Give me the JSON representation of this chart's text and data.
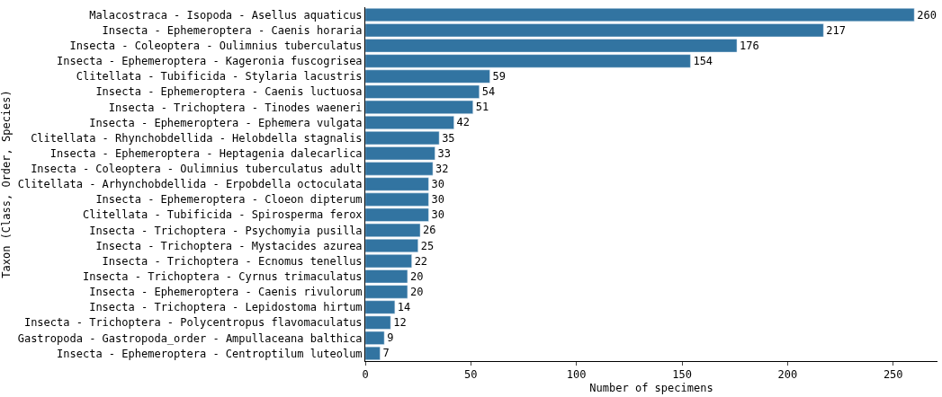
{
  "chart_data": {
    "type": "bar",
    "orientation": "horizontal",
    "xlabel": "Number of specimens",
    "ylabel": "Taxon (Class, Order, Species)",
    "categories": [
      "Malacostraca - Isopoda - Asellus aquaticus",
      "Insecta - Ephemeroptera - Caenis horaria",
      "Insecta - Coleoptera - Oulimnius tuberculatus",
      "Insecta - Ephemeroptera - Kageronia fuscogrisea",
      "Clitellata - Tubificida - Stylaria lacustris",
      "Insecta - Ephemeroptera - Caenis luctuosa",
      "Insecta - Trichoptera - Tinodes waeneri",
      "Insecta - Ephemeroptera - Ephemera vulgata",
      "Clitellata - Rhynchobdellida - Helobdella stagnalis",
      "Insecta - Ephemeroptera - Heptagenia dalecarlica",
      "Insecta - Coleoptera - Oulimnius tuberculatus adult",
      "Clitellata - Arhynchobdellida - Erpobdella octoculata",
      "Insecta - Ephemeroptera - Cloeon dipterum",
      "Clitellata - Tubificida - Spirosperma ferox",
      "Insecta - Trichoptera - Psychomyia pusilla",
      "Insecta - Trichoptera - Mystacides azurea",
      "Insecta - Trichoptera - Ecnomus tenellus",
      "Insecta - Trichoptera - Cyrnus trimaculatus",
      "Insecta - Ephemeroptera - Caenis rivulorum",
      "Insecta - Trichoptera - Lepidostoma hirtum",
      "Insecta - Trichoptera - Polycentropus flavomaculatus",
      "Gastropoda - Gastropoda_order - Ampullaceana balthica",
      "Insecta - Ephemeroptera - Centroptilum luteolum"
    ],
    "values": [
      260,
      217,
      176,
      154,
      59,
      54,
      51,
      42,
      35,
      33,
      32,
      30,
      30,
      30,
      26,
      25,
      22,
      20,
      20,
      14,
      12,
      9,
      7
    ],
    "color": "#3274a1",
    "xlim": [
      0,
      271
    ],
    "xticks": [
      0,
      50,
      100,
      150,
      200,
      250
    ],
    "data_labels": true
  }
}
